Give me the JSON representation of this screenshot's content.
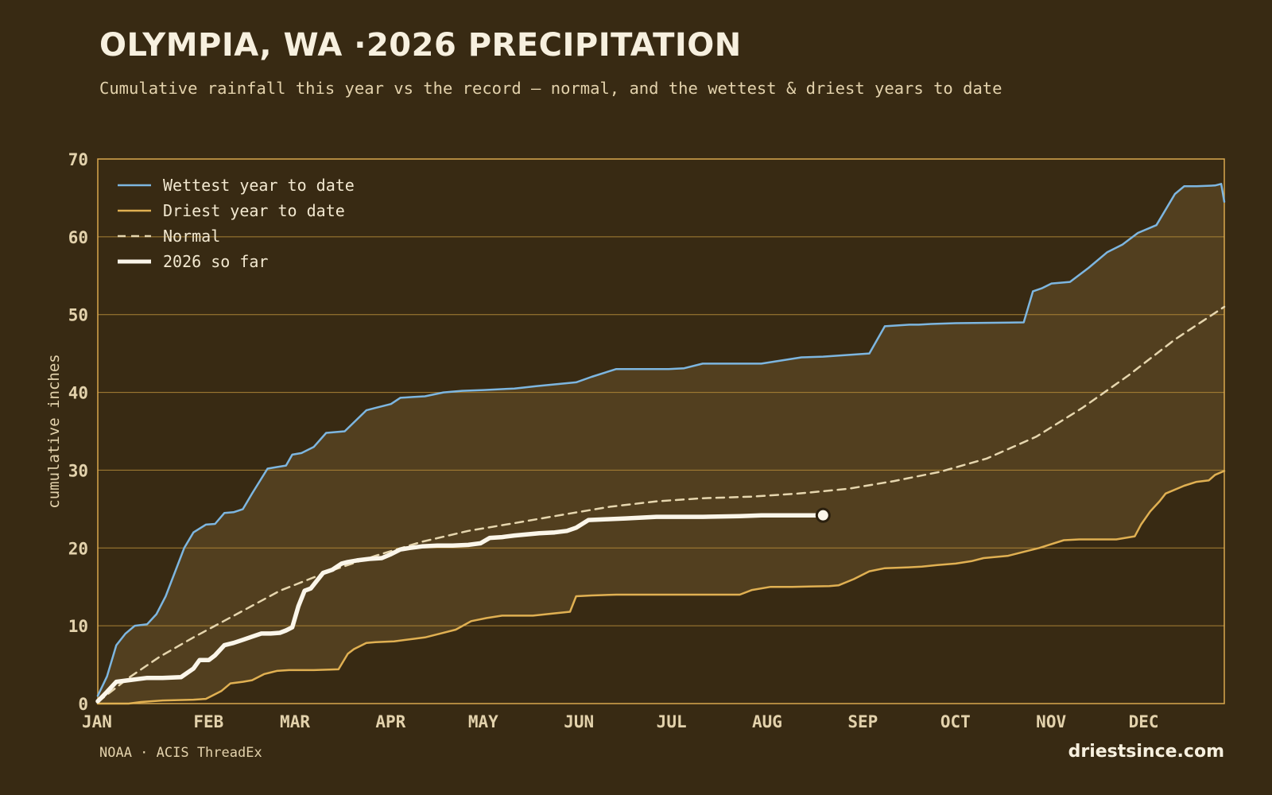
{
  "header": {
    "title": "OLYMPIA, WA ·2026 PRECIPITATION",
    "subtitle": "Cumulative rainfall this year vs the record — normal, and the wettest & driest years to date"
  },
  "footer": {
    "source": "NOAA · ACIS ThreadEx",
    "brand": "driestsince.com"
  },
  "colors": {
    "background": "#382a13",
    "band_fill": "#523f1f",
    "axis": "#d9a84e",
    "grid": "#a98236",
    "text": "#e3d2ac",
    "wettest": "#7db6e0",
    "driest": "#e0b052",
    "normal": "#e6d6ae",
    "current": "#fbf6ea"
  },
  "chart_data": {
    "type": "line",
    "ylabel": "cumulative inches",
    "xlabel": "",
    "xlim": [
      0,
      365
    ],
    "ylim": [
      0,
      70
    ],
    "yticks": [
      0,
      10,
      20,
      30,
      40,
      50,
      60,
      70
    ],
    "month_ticks": [
      {
        "label": "JAN",
        "day": 0
      },
      {
        "label": "FEB",
        "day": 31
      },
      {
        "label": "MAR",
        "day": 59
      },
      {
        "label": "APR",
        "day": 90
      },
      {
        "label": "MAY",
        "day": 120
      },
      {
        "label": "JUN",
        "day": 151
      },
      {
        "label": "JUL",
        "day": 181
      },
      {
        "label": "AUG",
        "day": 212
      },
      {
        "label": "SEP",
        "day": 243
      },
      {
        "label": "OCT",
        "day": 273
      },
      {
        "label": "NOV",
        "day": 304
      },
      {
        "label": "DEC",
        "day": 334
      }
    ],
    "legend_position": "top-left",
    "grid": "horizontal",
    "band_between": [
      "Driest year to date",
      "Wettest year to date"
    ],
    "series": [
      {
        "name": "Wettest year to date",
        "style": "solid",
        "x": [
          0,
          3,
          6,
          9,
          12,
          16,
          19,
          22,
          28,
          31,
          35,
          38,
          41,
          44,
          47,
          50,
          55,
          58,
          61,
          63,
          66,
          70,
          74,
          80,
          87,
          90,
          95,
          98,
          102,
          106,
          112,
          118,
          125,
          135,
          142,
          155,
          160,
          168,
          175,
          185,
          190,
          196,
          215,
          228,
          235,
          250,
          255,
          263,
          266,
          270,
          278,
          300,
          303,
          306,
          309,
          315,
          321,
          327,
          332,
          337,
          343,
          349,
          352,
          356,
          362,
          364,
          365
        ],
        "y": [
          1.0,
          3.5,
          7.5,
          9.0,
          10.0,
          10.2,
          11.5,
          13.8,
          20.0,
          22.0,
          23.0,
          23.1,
          24.5,
          24.6,
          25.0,
          27.0,
          30.2,
          30.4,
          30.6,
          32.0,
          32.2,
          33.0,
          34.8,
          35.0,
          37.7,
          38.0,
          38.5,
          39.3,
          39.4,
          39.5,
          40.0,
          40.2,
          40.3,
          40.5,
          40.8,
          41.3,
          42.0,
          43.0,
          43.0,
          43.0,
          43.1,
          43.7,
          43.7,
          44.5,
          44.6,
          45.0,
          48.5,
          48.7,
          48.7,
          48.8,
          48.9,
          49.0,
          53.0,
          53.4,
          54.0,
          54.2,
          56.0,
          58.0,
          59.0,
          60.5,
          61.5,
          65.5,
          66.5,
          66.5,
          66.6,
          66.8,
          64.5
        ]
      },
      {
        "name": "Driest year to date",
        "style": "solid",
        "x": [
          0,
          10,
          14,
          21,
          31,
          35,
          37,
          40,
          43,
          47,
          50,
          54,
          56,
          58,
          62,
          70,
          78,
          81,
          83,
          87,
          90,
          96,
          102,
          106,
          111,
          116,
          121,
          126,
          131,
          141,
          148,
          153,
          155,
          160,
          168,
          185,
          196,
          208,
          212,
          218,
          225,
          237,
          240,
          245,
          250,
          255,
          262,
          267,
          272,
          278,
          283,
          287,
          295,
          301,
          305,
          313,
          318,
          330,
          336,
          338,
          341,
          344,
          346,
          352,
          356,
          360,
          362,
          365
        ],
        "y": [
          0.0,
          0.0,
          0.2,
          0.4,
          0.5,
          0.6,
          1.0,
          1.6,
          2.6,
          2.8,
          3.0,
          3.8,
          4.0,
          4.2,
          4.3,
          4.3,
          4.4,
          6.4,
          7.0,
          7.8,
          7.9,
          8.0,
          8.3,
          8.5,
          9.0,
          9.5,
          10.6,
          11.0,
          11.3,
          11.3,
          11.6,
          11.8,
          13.8,
          13.9,
          14.0,
          14.0,
          14.0,
          14.0,
          14.6,
          15.0,
          15.0,
          15.1,
          15.2,
          16.0,
          17.0,
          17.4,
          17.5,
          17.6,
          17.8,
          18.0,
          18.3,
          18.7,
          19.0,
          19.6,
          20.0,
          21.0,
          21.1,
          21.1,
          21.5,
          23.0,
          24.7,
          26.0,
          27.0,
          28.0,
          28.5,
          28.7,
          29.4,
          29.9
        ]
      },
      {
        "name": "Normal",
        "style": "dashed",
        "x": [
          0,
          10,
          20,
          31,
          45,
          59,
          75,
          90,
          105,
          120,
          135,
          151,
          166,
          181,
          196,
          212,
          227,
          243,
          258,
          273,
          288,
          304,
          319,
          334,
          349,
          365
        ],
        "y": [
          0.2,
          3.3,
          6.0,
          8.5,
          11.5,
          14.5,
          17.0,
          19.0,
          20.8,
          22.2,
          23.2,
          24.3,
          25.3,
          26.0,
          26.4,
          26.6,
          27.0,
          27.6,
          28.6,
          29.8,
          31.5,
          34.3,
          38.0,
          42.2,
          46.8,
          51.0
        ]
      },
      {
        "name": "2026 so far",
        "style": "thick",
        "x": [
          0,
          3,
          6,
          10,
          16,
          21,
          27,
          31,
          33,
          36,
          38,
          41,
          44,
          47,
          50,
          53,
          56,
          59,
          61,
          63,
          65,
          67,
          69,
          71,
          73,
          76,
          79,
          81,
          84,
          88,
          92,
          95,
          98,
          101,
          105,
          110,
          115,
          120,
          124,
          127,
          131,
          135,
          143,
          148,
          152,
          155,
          159,
          165,
          171,
          176,
          181,
          185,
          196,
          208,
          215,
          235
        ],
        "y": [
          0.3,
          1.5,
          2.8,
          3.0,
          3.3,
          3.3,
          3.4,
          4.5,
          5.6,
          5.6,
          6.2,
          7.5,
          7.8,
          8.2,
          8.6,
          9.0,
          9.0,
          9.1,
          9.4,
          9.8,
          12.5,
          14.5,
          14.8,
          15.8,
          16.8,
          17.2,
          18.0,
          18.2,
          18.4,
          18.6,
          18.7,
          19.2,
          19.8,
          20.0,
          20.2,
          20.3,
          20.3,
          20.4,
          20.6,
          21.3,
          21.4,
          21.6,
          21.9,
          22.0,
          22.2,
          22.6,
          23.6,
          23.7,
          23.8,
          23.9,
          24.0,
          24.0,
          24.0,
          24.1,
          24.2,
          24.2
        ]
      }
    ]
  }
}
